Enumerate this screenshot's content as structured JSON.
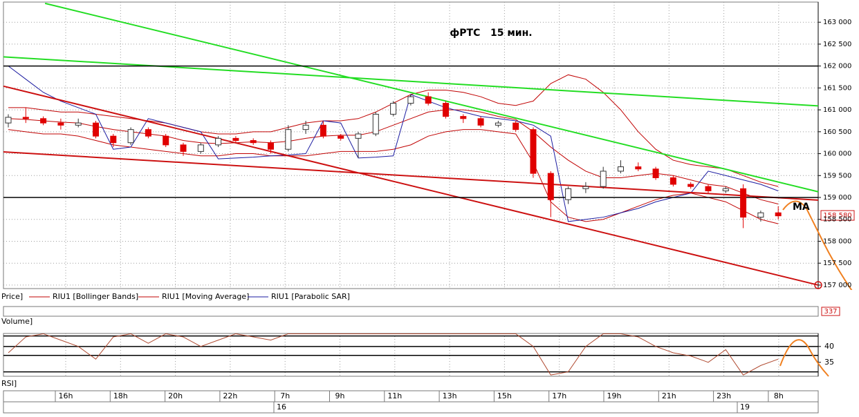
{
  "chart_data": {
    "type": "candlestick",
    "title": "фРТС   15 мин.",
    "open": [
      160700,
      160830,
      160800,
      160700,
      160650,
      160700,
      160400,
      160250,
      160550,
      160400,
      160200,
      160050,
      160200,
      160350,
      160300,
      160250,
      160100,
      160550,
      160650,
      160400,
      160350,
      160450,
      160900,
      161150,
      161300,
      161150,
      160850,
      160800,
      160650,
      160700,
      160550,
      159550,
      158950,
      159200,
      159250,
      159600,
      159700,
      159650,
      159450,
      159300,
      159250,
      159150,
      159200,
      158550,
      158650
    ],
    "high": [
      160900,
      161050,
      160850,
      160800,
      160800,
      160750,
      160450,
      160600,
      160600,
      160450,
      160250,
      160250,
      160400,
      160400,
      160350,
      160300,
      160650,
      160750,
      160750,
      160450,
      160500,
      160950,
      161200,
      161350,
      161400,
      161200,
      160900,
      160850,
      160750,
      160750,
      160600,
      159600,
      159250,
      159350,
      159700,
      159850,
      159800,
      159700,
      159500,
      159350,
      159300,
      159250,
      159300,
      158700,
      158800
    ],
    "low": [
      160600,
      160700,
      160650,
      160550,
      160600,
      160350,
      160150,
      160200,
      160350,
      160150,
      159950,
      160000,
      160150,
      160250,
      160200,
      160000,
      160050,
      160450,
      160350,
      160300,
      159900,
      160400,
      160850,
      161100,
      161100,
      160800,
      160700,
      160600,
      160600,
      160500,
      159450,
      158550,
      158850,
      159100,
      159200,
      159550,
      159600,
      159400,
      159250,
      159200,
      159100,
      159100,
      158300,
      158450,
      158500
    ],
    "close": [
      160830,
      160800,
      160700,
      160650,
      160700,
      160400,
      160250,
      160550,
      160400,
      160200,
      160050,
      160200,
      160350,
      160300,
      160250,
      160100,
      160550,
      160650,
      160400,
      160350,
      160450,
      160900,
      161150,
      161300,
      161150,
      160850,
      160800,
      160650,
      160700,
      160550,
      159550,
      158950,
      159200,
      159250,
      159600,
      159700,
      159650,
      159450,
      159300,
      159250,
      159150,
      159200,
      158550,
      158650,
      158580
    ],
    "up_color": "#ffffff",
    "down_color": "#e00000",
    "ylim": [
      156920,
      163460
    ],
    "yticks": [
      {
        "value": 157000,
        "label": "157 000"
      },
      {
        "value": 157500,
        "label": "157 500"
      },
      {
        "value": 158000,
        "label": "158 000"
      },
      {
        "value": 158500,
        "label": "158 500"
      },
      {
        "value": 159000,
        "label": "159 000"
      },
      {
        "value": 159500,
        "label": "159 500"
      },
      {
        "value": 160000,
        "label": "160 000"
      },
      {
        "value": 160500,
        "label": "160 500"
      },
      {
        "value": 161000,
        "label": "161 000"
      },
      {
        "value": 161500,
        "label": "161 500"
      },
      {
        "value": 162000,
        "label": "162 000"
      },
      {
        "value": 162500,
        "label": "162 500"
      },
      {
        "value": 163000,
        "label": "163 000"
      }
    ],
    "grid": true,
    "legend_price": "Price]",
    "bollinger": {
      "name": "RIU1 [Bollinger Bands]",
      "color": "#c00000",
      "upper": [
        161050,
        161050,
        161000,
        160950,
        160950,
        160900,
        160850,
        160800,
        160750,
        160700,
        160600,
        160500,
        160450,
        160450,
        160500,
        160500,
        160600,
        160700,
        160750,
        160750,
        160800,
        160950,
        161150,
        161350,
        161450,
        161450,
        161400,
        161300,
        161150,
        161100,
        161200,
        161600,
        161800,
        161700,
        161400,
        161000,
        160500,
        160100,
        159850,
        159750,
        159700,
        159650,
        159500,
        159350,
        159250
      ],
      "lower": [
        160550,
        160500,
        160450,
        160450,
        160400,
        160300,
        160200,
        160150,
        160100,
        160050,
        160000,
        159950,
        159950,
        160000,
        160000,
        159950,
        159950,
        159950,
        160000,
        160050,
        160050,
        160050,
        160100,
        160200,
        160400,
        160500,
        160550,
        160550,
        160500,
        160450,
        159800,
        158900,
        158550,
        158450,
        158500,
        158650,
        158800,
        158950,
        159050,
        159100,
        159000,
        158900,
        158700,
        158500,
        158400
      ]
    },
    "moving_average": {
      "name": "RIU1 [Moving Average]",
      "color": "#c00000",
      "values": [
        160800,
        160780,
        160750,
        160720,
        160700,
        160620,
        160550,
        160500,
        160450,
        160400,
        160300,
        160250,
        160230,
        160250,
        160270,
        160250,
        160280,
        160350,
        160400,
        160420,
        160420,
        160500,
        160650,
        160800,
        160950,
        161000,
        161000,
        160950,
        160850,
        160780,
        160500,
        160150,
        159850,
        159600,
        159450,
        159450,
        159500,
        159550,
        159500,
        159400,
        159300,
        159250,
        159100,
        158950,
        158850
      ]
    },
    "sar": {
      "name": "RIU1 [Parabolic SAR]",
      "color": "#1a1aa0",
      "values": [
        162000,
        161700,
        161400,
        161200,
        161050,
        160900,
        160100,
        160150,
        160800,
        160700,
        160600,
        160500,
        159880,
        159900,
        159920,
        159950,
        159970,
        160000,
        160750,
        160700,
        159900,
        159920,
        159950,
        161350,
        161200,
        161050,
        160950,
        160850,
        160800,
        160750,
        160650,
        160400,
        158450,
        158500,
        158550,
        158650,
        158750,
        158900,
        159000,
        159100,
        159600,
        159500,
        159400,
        159300,
        159150
      ]
    },
    "trendlines": [
      {
        "color": "#22dd22",
        "from": [
          2.1,
          163430
        ],
        "to": [
          46.3,
          159130
        ]
      },
      {
        "color": "#22dd22",
        "from": [
          -0.3,
          162210
        ],
        "to": [
          46.3,
          161090
        ]
      },
      {
        "color": "#cc1010",
        "from": [
          -0.3,
          161540
        ],
        "to": [
          46.3,
          157000
        ]
      },
      {
        "color": "#cc1010",
        "from": [
          -0.3,
          160040
        ],
        "to": [
          46.3,
          158940
        ]
      },
      {
        "color": "#000000",
        "from": [
          -0.3,
          162000
        ],
        "to": [
          46.3,
          162000
        ]
      },
      {
        "color": "#000000",
        "from": [
          -0.3,
          159000
        ],
        "to": [
          46.3,
          159000
        ]
      }
    ],
    "last_price": {
      "value": 158580,
      "label": "158 580"
    },
    "annotation": "MA",
    "volume": {
      "label": "Volume]",
      "value": 337
    },
    "rsi": {
      "label": "RSI]",
      "color": "#b04a30",
      "values": [
        38,
        43,
        44,
        42,
        40,
        36,
        43,
        44,
        41,
        44,
        43,
        40,
        42,
        44,
        43,
        42,
        44,
        44,
        44,
        44,
        44,
        44,
        44,
        44,
        44,
        44,
        44,
        44,
        44,
        44,
        40,
        31,
        32,
        40,
        44,
        44,
        43,
        40,
        38,
        37,
        35,
        39,
        31,
        34,
        36
      ],
      "ylim": [
        30.6,
        44.1
      ],
      "yticks": [
        35,
        40
      ],
      "levels": [
        43.3,
        40,
        37.2,
        32
      ]
    },
    "time_labels": [
      "16h",
      "18h",
      "20h",
      "22h",
      "7h",
      "9h",
      "11h",
      "13h",
      "15h",
      "17h",
      "19h",
      "21h",
      "23h",
      "8h"
    ],
    "date_labels": [
      "16",
      "19"
    ]
  }
}
